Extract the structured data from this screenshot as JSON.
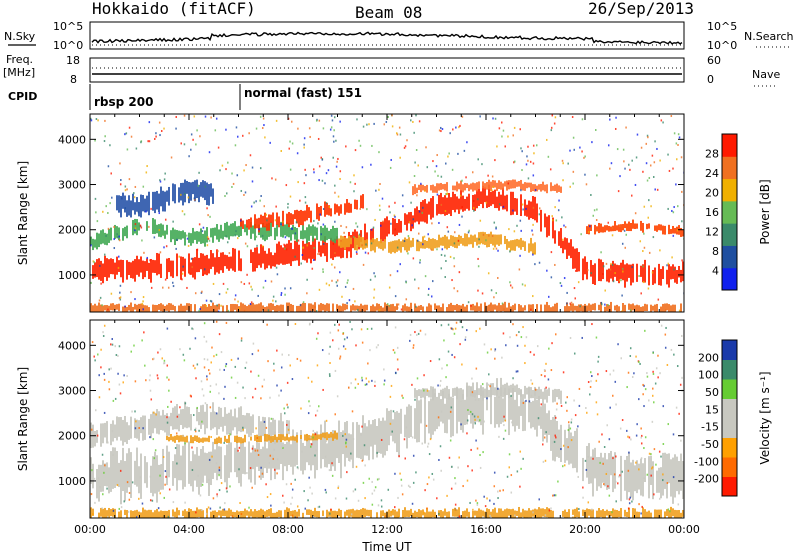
{
  "header": {
    "station": "Hokkaido (fitACF)",
    "beam": "Beam 08",
    "date": "26/Sep/2013"
  },
  "strips": {
    "nsky_label": "N.Sky",
    "nsky_ticks": [
      "10^5",
      "10^0"
    ],
    "nsearch_label": "N.Search",
    "nsearch_ticks": [
      "10^5",
      "10^0"
    ],
    "freq_label": "Freq.",
    "freq_unit": "[MHz]",
    "freq_ticks": [
      "18",
      "8"
    ],
    "nave_label": "Nave",
    "nave_ticks": [
      "60",
      "0"
    ],
    "cpid_label": "CPID",
    "cpid_segments": [
      {
        "label": "rbsp 200",
        "start_hour": 0
      },
      {
        "label": "normal (fast) 151",
        "start_hour": 6
      }
    ]
  },
  "chart_data": [
    {
      "type": "heatmap",
      "name": "power-panel",
      "ylabel": "Slant Range [km]",
      "xlim": [
        0,
        24
      ],
      "ylim": [
        180,
        4560
      ],
      "yticks": [
        1000,
        2000,
        3000,
        4000
      ],
      "colorbar": {
        "label": "Power [dB]",
        "ticks": [
          "4",
          "8",
          "12",
          "16",
          "20",
          "24",
          "28"
        ],
        "colors": [
          "#1020ee",
          "#1f4fa0",
          "#3a8a6a",
          "#66bb55",
          "#f0b000",
          "#f07020",
          "#ff1a00"
        ]
      },
      "bands": [
        {
          "t": [
            0,
            3,
            6,
            8,
            10,
            12,
            14,
            16,
            18,
            20,
            22,
            24
          ],
          "r": [
            1100,
            1180,
            1300,
            1450,
            1600,
            2000,
            2500,
            2700,
            2400,
            1100,
            1000,
            1050
          ],
          "w": 350,
          "color": "#ff2200"
        },
        {
          "t": [
            0,
            2,
            4,
            6,
            8,
            10
          ],
          "r": [
            1700,
            2100,
            1800,
            2000,
            1950,
            1900
          ],
          "w": 250,
          "color": "#44aa55"
        },
        {
          "t": [
            1,
            2,
            3,
            4,
            5
          ],
          "r": [
            2600,
            2500,
            2700,
            2900,
            2800
          ],
          "w": 350,
          "color": "#2a55aa"
        },
        {
          "t": [
            6,
            8,
            10,
            11
          ],
          "r": [
            2100,
            2250,
            2450,
            2600
          ],
          "w": 250,
          "color": "#ff3300"
        },
        {
          "t": [
            10,
            12,
            14,
            16,
            18
          ],
          "r": [
            1750,
            1650,
            1700,
            1800,
            1600
          ],
          "w": 200,
          "color": "#f0a020"
        },
        {
          "t": [
            13,
            15,
            17,
            19
          ],
          "r": [
            2900,
            2950,
            3000,
            2900
          ],
          "w": 150,
          "color": "#ff7030"
        },
        {
          "t": [
            20,
            22,
            24
          ],
          "r": [
            2000,
            2100,
            1950
          ],
          "w": 150,
          "color": "#ff4400"
        },
        {
          "t": [
            0,
            24
          ],
          "r": [
            260,
            260
          ],
          "w": 150,
          "color": "#f07020"
        }
      ]
    },
    {
      "type": "heatmap",
      "name": "velocity-panel",
      "ylabel": "Slant Range [km]",
      "xlabel": "Time UT",
      "xlim": [
        0,
        24
      ],
      "ylim": [
        180,
        4560
      ],
      "yticks": [
        1000,
        2000,
        3000,
        4000
      ],
      "xticks": [
        "00:00",
        "04:00",
        "08:00",
        "12:00",
        "16:00",
        "20:00",
        "00:00"
      ],
      "colorbar": {
        "label": "Velocity [m s⁻¹]",
        "ticks": [
          "-200",
          "-100",
          "-50",
          "-15",
          "15",
          "50",
          "100",
          "200"
        ],
        "colors": [
          "#ff1a00",
          "#ff6a00",
          "#ffa000",
          "#c8c8c0",
          "#c8c8c0",
          "#66cc33",
          "#3a8a6a",
          "#1a3aaa"
        ]
      },
      "bands": [
        {
          "t": [
            0,
            3,
            6,
            8,
            10,
            12,
            14,
            16,
            18,
            20,
            22,
            24
          ],
          "r": [
            1100,
            1200,
            1400,
            1550,
            1700,
            2100,
            2500,
            2700,
            2500,
            1300,
            1150,
            1100
          ],
          "w": 700,
          "color": "#c8c8c0"
        },
        {
          "t": [
            0,
            2,
            4,
            6,
            8
          ],
          "r": [
            2000,
            2200,
            2400,
            2300,
            2100
          ],
          "w": 400,
          "color": "#c8c8c0"
        },
        {
          "t": [
            13,
            15,
            17,
            19
          ],
          "r": [
            2900,
            2950,
            3000,
            2900
          ],
          "w": 200,
          "color": "#c8c8c0"
        },
        {
          "t": [
            0,
            24
          ],
          "r": [
            270,
            270
          ],
          "w": 160,
          "color": "#f0a020"
        },
        {
          "t": [
            3,
            5,
            8,
            10
          ],
          "r": [
            1950,
            1900,
            1950,
            2000
          ],
          "w": 120,
          "color": "#f0a020"
        }
      ]
    }
  ]
}
